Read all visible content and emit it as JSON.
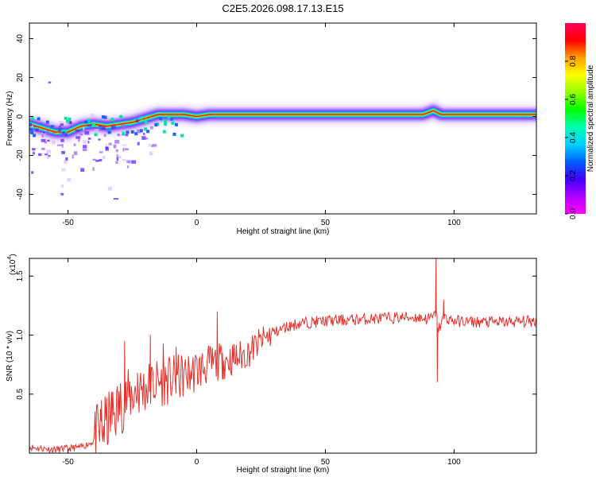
{
  "title": "C2E5.2026.098.17.13.E15",
  "chart_data": [
    {
      "type": "heatmap",
      "xlabel": "Height of straight line (km)",
      "ylabel": "Frequency (Hz)",
      "xlim": [
        -65,
        132
      ],
      "ylim": [
        -50,
        48
      ],
      "xticks": [
        -50,
        0,
        50,
        100
      ],
      "yticks": [
        -40,
        -20,
        0,
        20,
        40
      ],
      "colorbar": {
        "label": "Normalized spectral amplitude",
        "range": [
          0,
          1
        ],
        "ticks": [
          "0.0",
          "0.2",
          "0.4",
          "0.6",
          "0.8"
        ],
        "colormap": [
          "#ff00ff",
          "#b000ff",
          "#4000ff",
          "#0060ff",
          "#00d0ff",
          "#00ffb0",
          "#00ff00",
          "#90ff00",
          "#ffff00",
          "#ffa000",
          "#ff0000",
          "#ff0060"
        ]
      },
      "ridge": {
        "x": [
          -65,
          -60,
          -55,
          -50,
          -45,
          -40,
          -35,
          -30,
          -25,
          -20,
          -15,
          -10,
          -5,
          0,
          5,
          10,
          20,
          40,
          60,
          80,
          88,
          92,
          95,
          100,
          110,
          132
        ],
        "y": [
          -4,
          -6,
          -8,
          -8,
          -5,
          -4,
          -5,
          -4,
          -3,
          -1,
          1,
          1,
          1,
          0,
          1,
          1,
          1,
          1,
          1,
          1,
          1,
          3,
          1,
          1,
          1,
          1
        ]
      }
    },
    {
      "type": "line",
      "xlabel": "Height of straight line (km)",
      "ylabel": "SNR (10 * v/v)",
      "y_multiplier": "(x10",
      "y_multiplier_exp": "4",
      "xlim": [
        -65,
        132
      ],
      "ylim": [
        0,
        1.65
      ],
      "xticks": [
        -50,
        0,
        50,
        100
      ],
      "yticks": [
        "0.5",
        "1.0",
        "1.5"
      ],
      "color": "#e8302a",
      "series": [
        {
          "x": [
            -65,
            -55,
            -45,
            -40,
            -35,
            -30,
            -25,
            -20,
            -15,
            -10,
            -5,
            0,
            5,
            10,
            15,
            20,
            25,
            30,
            35,
            40,
            50,
            60,
            70,
            80,
            85,
            90,
            92,
            93,
            94,
            96,
            100,
            110,
            120,
            132
          ],
          "y": [
            0.05,
            0.03,
            0.05,
            0.1,
            0.25,
            0.4,
            0.5,
            0.55,
            0.6,
            0.62,
            0.65,
            0.7,
            0.75,
            0.78,
            0.8,
            0.85,
            0.95,
            1.02,
            1.07,
            1.1,
            1.12,
            1.13,
            1.14,
            1.15,
            1.15,
            1.14,
            1.15,
            1.2,
            1.05,
            1.15,
            1.12,
            1.11,
            1.11,
            1.12
          ]
        }
      ],
      "spikes": {
        "x": [
          -37,
          -33,
          -28,
          -23,
          -18,
          -13,
          -8,
          8,
          10,
          93,
          93.5,
          96
        ],
        "y": [
          0.45,
          0.52,
          0.95,
          0.68,
          1.0,
          0.93,
          0.9,
          1.2,
          0.85,
          1.65,
          0.6,
          1.3
        ]
      }
    }
  ]
}
